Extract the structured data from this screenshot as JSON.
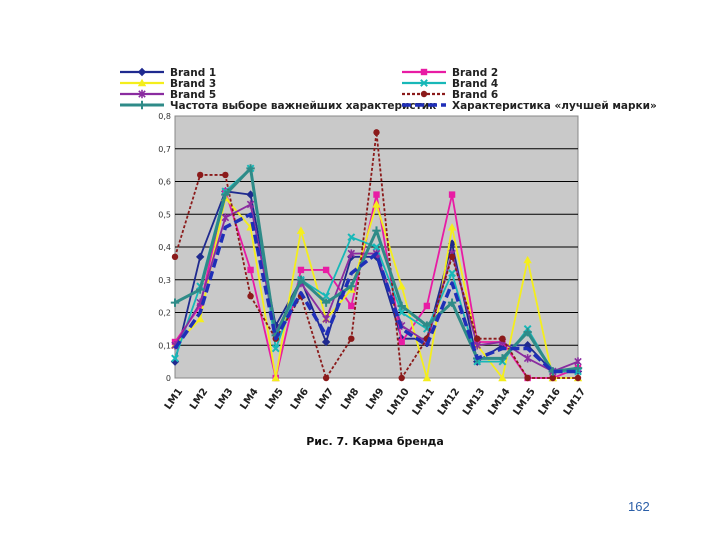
{
  "chart_data": {
    "type": "line",
    "title": "",
    "caption": {
      "prefix": "Рис. 7.",
      "text": "Карма бренда"
    },
    "xlabel": "",
    "ylabel": "",
    "ylim": [
      0,
      0.8
    ],
    "yticks": [
      "0",
      "0,1",
      "0,2",
      "0,3",
      "0,4",
      "0,5",
      "0,6",
      "0,7",
      "0,8"
    ],
    "grid": true,
    "legend_position": "top",
    "categories": [
      "LM1",
      "LM2",
      "LM3",
      "LM4",
      "LM5",
      "LM6",
      "LM7",
      "LM8",
      "LM9",
      "LM10",
      "LM11",
      "LM12",
      "LM13",
      "LM14",
      "LM15",
      "LM16",
      "LM17"
    ],
    "series": [
      {
        "name": "Brand 1",
        "color": "#1f2a8f",
        "marker": "diamond",
        "dash": "solid",
        "values": [
          0.05,
          0.37,
          0.57,
          0.56,
          0.16,
          0.3,
          0.11,
          0.37,
          0.37,
          0.12,
          0.12,
          0.41,
          0.05,
          0.1,
          0.1,
          0.02,
          0.02
        ]
      },
      {
        "name": "Brand 2",
        "color": "#e81ca4",
        "marker": "square",
        "dash": "solid",
        "values": [
          0.11,
          0.22,
          0.57,
          0.33,
          0.0,
          0.33,
          0.33,
          0.22,
          0.56,
          0.11,
          0.22,
          0.56,
          0.11,
          0.11,
          0.0,
          0.0,
          0.03
        ]
      },
      {
        "name": "Brand 3",
        "color": "#f4ee1c",
        "marker": "triangle",
        "dash": "solid",
        "values": [
          0.1,
          0.18,
          0.55,
          0.46,
          0.0,
          0.45,
          0.18,
          0.27,
          0.53,
          0.28,
          0.0,
          0.46,
          0.1,
          0.0,
          0.36,
          0.0,
          0.0
        ]
      },
      {
        "name": "Brand 4",
        "color": "#18b8b8",
        "marker": "x",
        "dash": "solid",
        "values": [
          0.06,
          0.28,
          0.57,
          0.64,
          0.09,
          0.3,
          0.25,
          0.43,
          0.4,
          0.2,
          0.15,
          0.32,
          0.05,
          0.05,
          0.15,
          0.02,
          0.02
        ]
      },
      {
        "name": "Brand 5",
        "color": "#8a2ca0",
        "marker": "star",
        "dash": "solid",
        "values": [
          0.1,
          0.23,
          0.49,
          0.53,
          0.14,
          0.29,
          0.18,
          0.38,
          0.38,
          0.16,
          0.11,
          0.38,
          0.1,
          0.11,
          0.06,
          0.02,
          0.05
        ]
      },
      {
        "name": "Brand 6",
        "color": "#8b1a1a",
        "marker": "circle",
        "dash": "dashed",
        "values": [
          0.37,
          0.62,
          0.62,
          0.25,
          0.12,
          0.25,
          0.0,
          0.12,
          0.75,
          0.0,
          0.12,
          0.37,
          0.12,
          0.12,
          0.0,
          0.0,
          0.0
        ]
      },
      {
        "name": "Частота выборе важнейших характеристик",
        "color": "#2e8b88",
        "marker": "plus",
        "dash": "solid",
        "width": 3,
        "values": [
          0.23,
          0.27,
          0.56,
          0.64,
          0.13,
          0.3,
          0.23,
          0.28,
          0.45,
          0.22,
          0.16,
          0.23,
          0.06,
          0.06,
          0.14,
          0.02,
          0.03
        ]
      },
      {
        "name": "Характеристика «лучшей марки»",
        "color": "#1f2fb8",
        "marker": "none",
        "dash": "bigdash",
        "width": 3.5,
        "values": [
          0.09,
          0.2,
          0.46,
          0.5,
          0.12,
          0.26,
          0.13,
          0.32,
          0.38,
          0.15,
          0.1,
          0.29,
          0.06,
          0.09,
          0.09,
          0.02,
          0.02
        ]
      }
    ]
  },
  "page": {
    "number": "162"
  }
}
